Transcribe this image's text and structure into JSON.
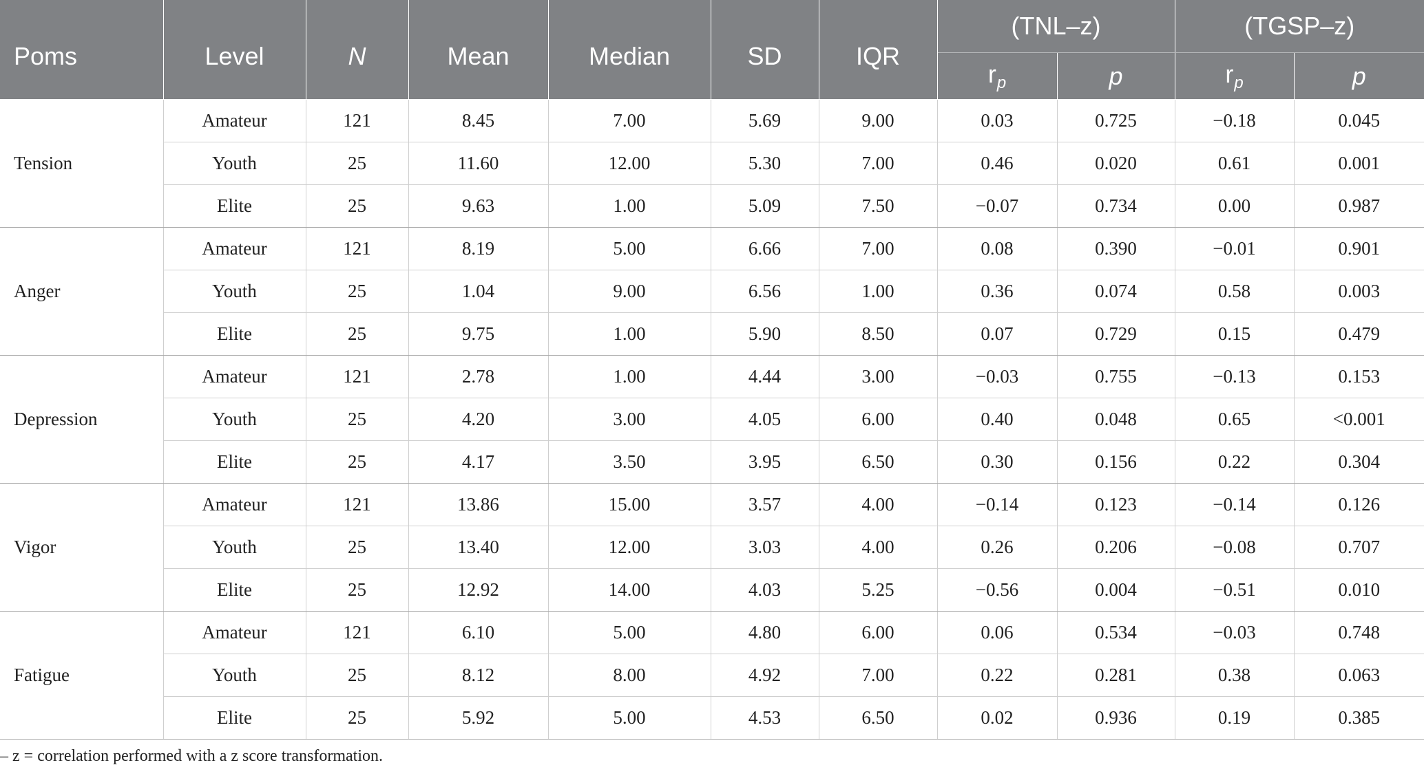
{
  "table": {
    "headers": {
      "poms": "Poms",
      "level": "Level",
      "n": "N",
      "mean": "Mean",
      "median": "Median",
      "sd": "SD",
      "iqr": "IQR",
      "tnl": "(TNL–z)",
      "tgsp": "(TGSP–z)",
      "rp": "r",
      "rp_sub": "p",
      "p": "p"
    },
    "groups": [
      {
        "name": "Tension",
        "rows": [
          {
            "level": "Amateur",
            "n": "121",
            "mean": "8.45",
            "median": "7.00",
            "sd": "5.69",
            "iqr": "9.00",
            "tnl_r": "0.03",
            "tnl_p": "0.725",
            "tgsp_r": "−0.18",
            "tgsp_p": "0.045"
          },
          {
            "level": "Youth",
            "n": "25",
            "mean": "11.60",
            "median": "12.00",
            "sd": "5.30",
            "iqr": "7.00",
            "tnl_r": "0.46",
            "tnl_p": "0.020",
            "tgsp_r": "0.61",
            "tgsp_p": "0.001"
          },
          {
            "level": "Elite",
            "n": "25",
            "mean": "9.63",
            "median": "1.00",
            "sd": "5.09",
            "iqr": "7.50",
            "tnl_r": "−0.07",
            "tnl_p": "0.734",
            "tgsp_r": "0.00",
            "tgsp_p": "0.987"
          }
        ]
      },
      {
        "name": "Anger",
        "rows": [
          {
            "level": "Amateur",
            "n": "121",
            "mean": "8.19",
            "median": "5.00",
            "sd": "6.66",
            "iqr": "7.00",
            "tnl_r": "0.08",
            "tnl_p": "0.390",
            "tgsp_r": "−0.01",
            "tgsp_p": "0.901"
          },
          {
            "level": "Youth",
            "n": "25",
            "mean": "1.04",
            "median": "9.00",
            "sd": "6.56",
            "iqr": "1.00",
            "tnl_r": "0.36",
            "tnl_p": "0.074",
            "tgsp_r": "0.58",
            "tgsp_p": "0.003"
          },
          {
            "level": "Elite",
            "n": "25",
            "mean": "9.75",
            "median": "1.00",
            "sd": "5.90",
            "iqr": "8.50",
            "tnl_r": "0.07",
            "tnl_p": "0.729",
            "tgsp_r": "0.15",
            "tgsp_p": "0.479"
          }
        ]
      },
      {
        "name": "Depression",
        "rows": [
          {
            "level": "Amateur",
            "n": "121",
            "mean": "2.78",
            "median": "1.00",
            "sd": "4.44",
            "iqr": "3.00",
            "tnl_r": "−0.03",
            "tnl_p": "0.755",
            "tgsp_r": "−0.13",
            "tgsp_p": "0.153"
          },
          {
            "level": "Youth",
            "n": "25",
            "mean": "4.20",
            "median": "3.00",
            "sd": "4.05",
            "iqr": "6.00",
            "tnl_r": "0.40",
            "tnl_p": "0.048",
            "tgsp_r": "0.65",
            "tgsp_p": "<0.001"
          },
          {
            "level": "Elite",
            "n": "25",
            "mean": "4.17",
            "median": "3.50",
            "sd": "3.95",
            "iqr": "6.50",
            "tnl_r": "0.30",
            "tnl_p": "0.156",
            "tgsp_r": "0.22",
            "tgsp_p": "0.304"
          }
        ]
      },
      {
        "name": "Vigor",
        "rows": [
          {
            "level": "Amateur",
            "n": "121",
            "mean": "13.86",
            "median": "15.00",
            "sd": "3.57",
            "iqr": "4.00",
            "tnl_r": "−0.14",
            "tnl_p": "0.123",
            "tgsp_r": "−0.14",
            "tgsp_p": "0.126"
          },
          {
            "level": "Youth",
            "n": "25",
            "mean": "13.40",
            "median": "12.00",
            "sd": "3.03",
            "iqr": "4.00",
            "tnl_r": "0.26",
            "tnl_p": "0.206",
            "tgsp_r": "−0.08",
            "tgsp_p": "0.707"
          },
          {
            "level": "Elite",
            "n": "25",
            "mean": "12.92",
            "median": "14.00",
            "sd": "4.03",
            "iqr": "5.25",
            "tnl_r": "−0.56",
            "tnl_p": "0.004",
            "tgsp_r": "−0.51",
            "tgsp_p": "0.010"
          }
        ]
      },
      {
        "name": "Fatigue",
        "rows": [
          {
            "level": "Amateur",
            "n": "121",
            "mean": "6.10",
            "median": "5.00",
            "sd": "4.80",
            "iqr": "6.00",
            "tnl_r": "0.06",
            "tnl_p": "0.534",
            "tgsp_r": "−0.03",
            "tgsp_p": "0.748"
          },
          {
            "level": "Youth",
            "n": "25",
            "mean": "8.12",
            "median": "8.00",
            "sd": "4.92",
            "iqr": "7.00",
            "tnl_r": "0.22",
            "tnl_p": "0.281",
            "tgsp_r": "0.38",
            "tgsp_p": "0.063"
          },
          {
            "level": "Elite",
            "n": "25",
            "mean": "5.92",
            "median": "5.00",
            "sd": "4.53",
            "iqr": "6.50",
            "tnl_r": "0.02",
            "tnl_p": "0.936",
            "tgsp_r": "0.19",
            "tgsp_p": "0.385"
          }
        ]
      }
    ]
  },
  "footnote": "– z = correlation performed with a z score transformation.",
  "colors": {
    "header_bg": "#808285",
    "header_text": "#ffffff",
    "body_text": "#222222"
  }
}
